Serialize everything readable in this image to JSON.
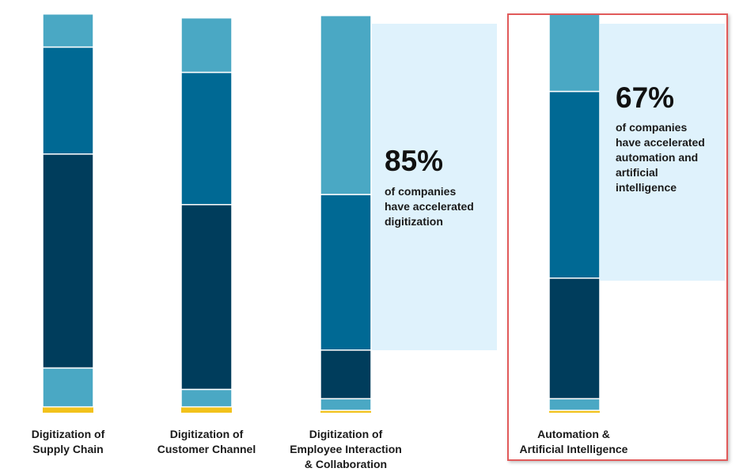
{
  "chart_data": {
    "type": "bar",
    "stacked": true,
    "orientation": "vertical",
    "categories": [
      "Digitization of\nSupply Chain",
      "Digitization of\nCustomer Channel",
      "Digitization of\nEmployee Interaction\n& Collaboration",
      "Automation &\nArtificial Intelligence"
    ],
    "series": [
      {
        "color": "#f2c21b",
        "values": [
          1.5,
          1.5,
          0.6,
          0.6
        ]
      },
      {
        "color": "#4aa8c4",
        "values": [
          10,
          4.5,
          3,
          3
        ]
      },
      {
        "color": "#003d5c",
        "values": [
          55,
          47.5,
          12.5,
          31
        ]
      },
      {
        "color": "#006994",
        "values": [
          27.5,
          34,
          40,
          48
        ]
      },
      {
        "color": "#4aa8c4",
        "values": [
          8.5,
          14,
          46,
          20
        ]
      }
    ],
    "ylim": [
      0,
      100
    ],
    "grid": false,
    "legend": "none",
    "highlight_category": 3
  },
  "callouts": [
    {
      "category": 2,
      "percent": "85%",
      "text": "of companies\nhave accelerated\ndigitization"
    },
    {
      "category": 3,
      "percent": "67%",
      "text": "of companies\nhave accelerated\nautomation and\nartificial\nintelligence"
    }
  ],
  "colors": {
    "callout_bg": "#dff2fc",
    "highlight_border": "#e15a5a"
  }
}
